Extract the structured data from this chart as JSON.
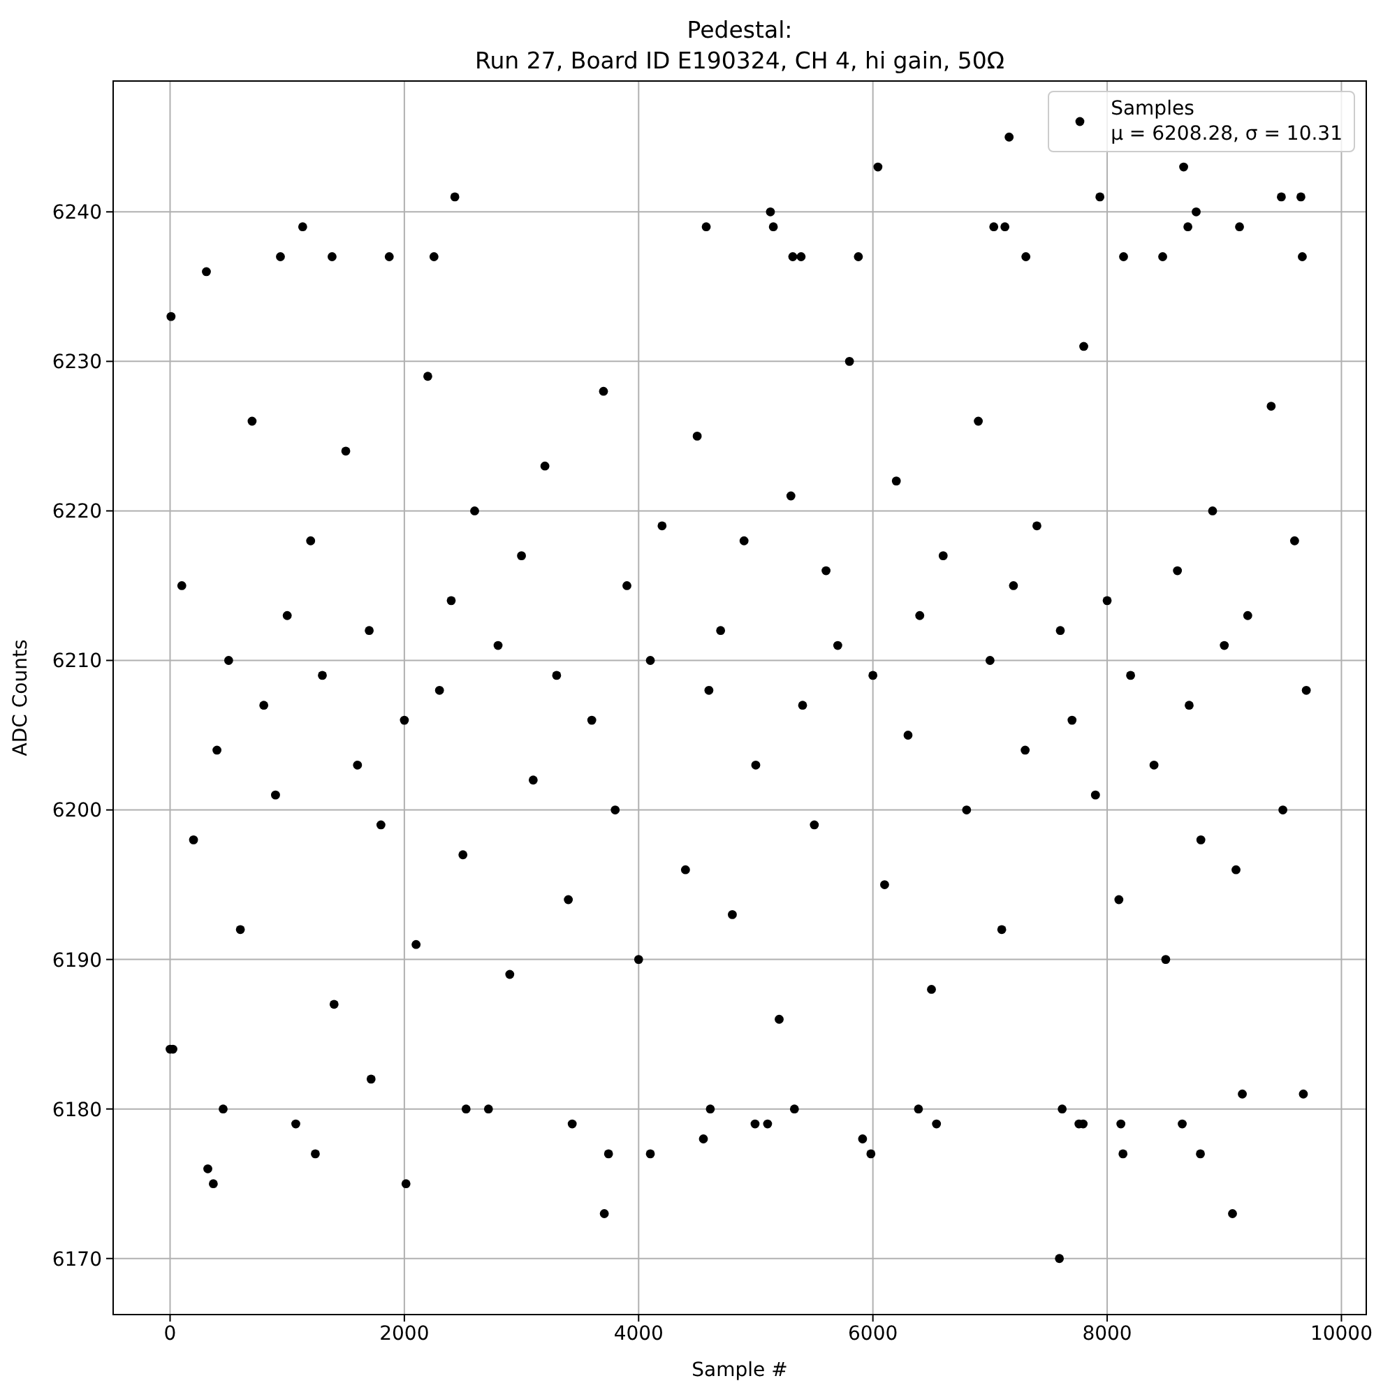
{
  "chart_data": {
    "type": "scatter",
    "title": "Pedestal:\nRun 27, Board ID E190324, CH 4, hi gain, 50Ω",
    "xlabel": "Sample #",
    "ylabel": "ADC Counts",
    "xlim": [
      -486,
      10212
    ],
    "ylim": [
      6166.25,
      6248.75
    ],
    "xticks": [
      0,
      2000,
      4000,
      6000,
      8000,
      10000
    ],
    "yticks": [
      6170,
      6180,
      6190,
      6200,
      6210,
      6220,
      6230,
      6240
    ],
    "grid": true,
    "legend": "top right",
    "marker": "circle",
    "series": [
      {
        "name": "Samples\nμ = 6208.28, σ = 10.31",
        "color": "#000000",
        "x": [
          100,
          200,
          400,
          500,
          600,
          700,
          800,
          900,
          1000,
          1200,
          1300,
          1400,
          1500,
          1600,
          1700,
          1800,
          2000,
          2100,
          2200,
          2300,
          2400,
          2500,
          2600,
          2800,
          2900,
          3000,
          3100,
          3200,
          3300,
          3400,
          3600,
          3700,
          3800,
          3900,
          4000,
          4100,
          4200,
          4400,
          4500,
          4600,
          4700,
          4800,
          4900,
          5000,
          5200,
          5300,
          5400,
          5500,
          5600,
          5700,
          5800,
          6000,
          6100,
          6200,
          6300,
          6400,
          6500,
          6600,
          6800,
          6900,
          7000,
          7100,
          7200,
          7300,
          7400,
          7600,
          7700,
          7800,
          7900,
          8000,
          8100,
          8200,
          8400,
          8500,
          8600,
          8700,
          8800,
          8900,
          9000,
          9100,
          9200,
          9400,
          9500,
          9600,
          9700,
          8,
          310,
          942,
          1132,
          1383,
          1871,
          2253,
          2431,
          4577,
          5125,
          5150,
          5316,
          5387,
          5876,
          6043,
          7032,
          7127,
          7163,
          7306,
          7938,
          8140,
          8474,
          8653,
          8689,
          8760,
          9130,
          9487,
          9654,
          9666,
          0,
          24,
          322,
          369,
          453,
          1073,
          1240,
          1716,
          2014,
          2527,
          2718,
          3433,
          3707,
          3743,
          4100,
          4553,
          4612,
          4994,
          5101,
          5330,
          5912,
          5983,
          6389,
          6543,
          7592,
          7616,
          7759,
          7795,
          8117,
          8135,
          8641,
          8796,
          9070,
          9154,
          9675
        ],
        "values": [
          6215,
          6198,
          6204,
          6210,
          6192,
          6226,
          6207,
          6201,
          6213,
          6218,
          6209,
          6187,
          6224,
          6203,
          6212,
          6199,
          6206,
          6191,
          6229,
          6208,
          6214,
          6197,
          6220,
          6211,
          6189,
          6217,
          6202,
          6223,
          6209,
          6194,
          6206,
          6228,
          6200,
          6215,
          6190,
          6210,
          6219,
          6196,
          6225,
          6208,
          6212,
          6193,
          6218,
          6203,
          6186,
          6221,
          6207,
          6199,
          6216,
          6211,
          6230,
          6209,
          6195,
          6222,
          6205,
          6213,
          6188,
          6217,
          6200,
          6226,
          6210,
          6192,
          6215,
          6204,
          6219,
          6212,
          6206,
          6231,
          6201,
          6214,
          6194,
          6209,
          6203,
          6190,
          6216,
          6207,
          6198,
          6220,
          6211,
          6196,
          6213,
          6227,
          6200,
          6218,
          6208,
          6233,
          6236,
          6237,
          6239,
          6237,
          6237,
          6237,
          6241,
          6239,
          6240,
          6239,
          6237,
          6237,
          6237,
          6243,
          6239,
          6239,
          6245,
          6237,
          6241,
          6237,
          6237,
          6243,
          6239,
          6240,
          6239,
          6241,
          6241,
          6237,
          6184,
          6184,
          6176,
          6175,
          6180,
          6179,
          6177,
          6182,
          6175,
          6180,
          6180,
          6179,
          6173,
          6177,
          6177,
          6178,
          6180,
          6179,
          6179,
          6180,
          6178,
          6177,
          6180,
          6179,
          6170,
          6180,
          6179,
          6179,
          6179,
          6177,
          6179,
          6177,
          6173,
          6181,
          6181
        ]
      }
    ]
  }
}
